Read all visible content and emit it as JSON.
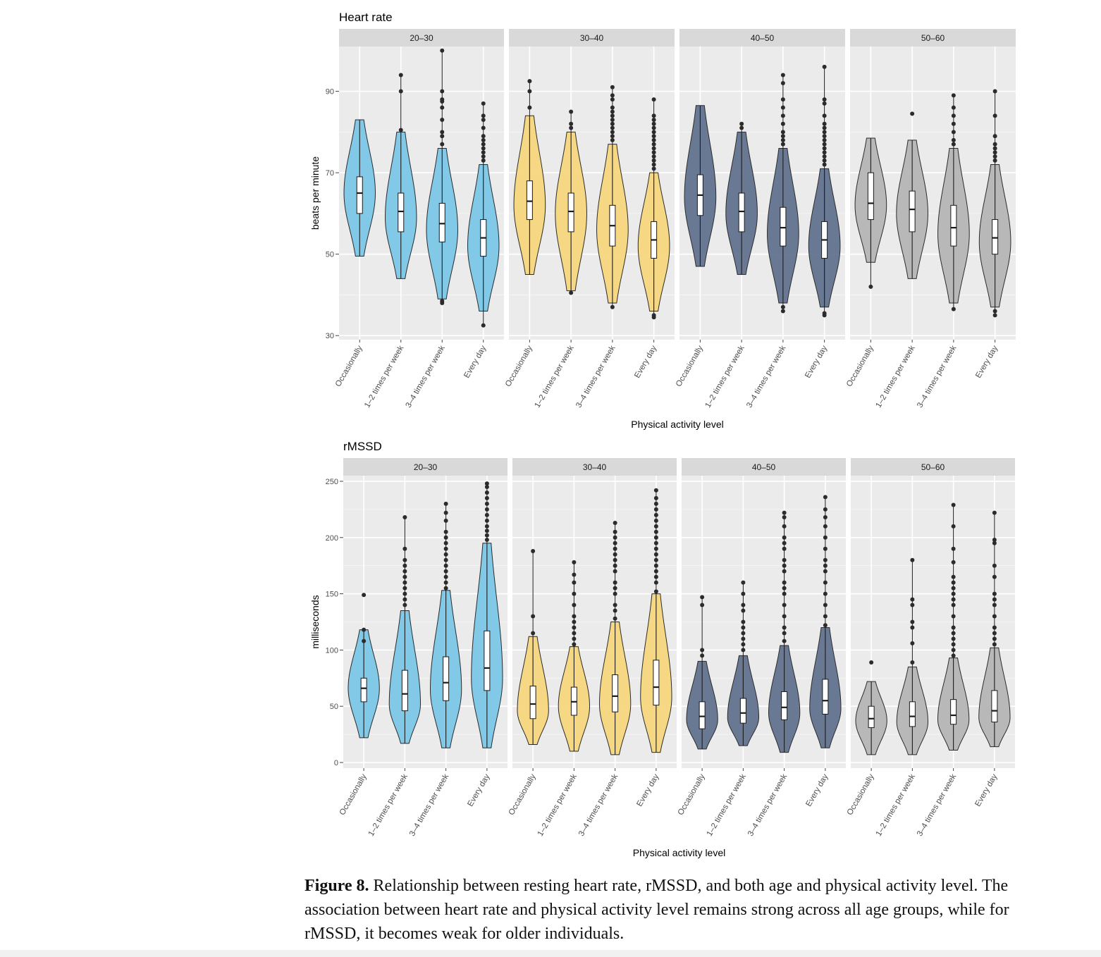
{
  "figure": {
    "caption_label": "Figure 8.",
    "caption_text": "Relationship between resting heart rate, rMSSD, and both age and physical activity level. The association between heart rate and physical activity level remains strong across all age groups, while for rMSSD, it becomes weak for older individuals."
  },
  "chart_data": [
    {
      "type": "violin",
      "title": "Heart rate",
      "ylabel": "beats per minute",
      "xlabel": "Physical activity level",
      "ylim": [
        29,
        101
      ],
      "yticks": [
        30,
        50,
        70,
        90
      ],
      "grid": true,
      "facets": [
        "20–30",
        "30–40",
        "40–50",
        "50–60"
      ],
      "categories": [
        "Occasionally",
        "1–2 times per week",
        "3–4 times per week",
        "Every day"
      ],
      "facet_colors": [
        "#78c4e6",
        "#f6d57a",
        "#5d6f8c",
        "#b3b3b3"
      ],
      "groups": [
        [
          {
            "min": 49.5,
            "q1": 60,
            "median": 65,
            "q3": 69,
            "max": 83,
            "mode": 65,
            "outliers": []
          },
          {
            "min": 44,
            "q1": 55.5,
            "median": 60.5,
            "q3": 65,
            "max": 80,
            "mode": 59,
            "outliers": [
              80.5,
              90,
              94
            ]
          },
          {
            "min": 39,
            "q1": 53,
            "median": 57.5,
            "q3": 62.5,
            "max": 76,
            "mode": 56,
            "outliers": [
              38,
              38.5,
              77,
              79,
              80,
              83,
              86,
              87.5,
              88,
              90,
              100
            ]
          },
          {
            "min": 36,
            "q1": 49.5,
            "median": 54,
            "q3": 58.5,
            "max": 72,
            "mode": 52,
            "outliers": [
              32.5,
              73,
              74,
              75,
              76,
              77,
              78,
              79,
              81,
              83,
              84,
              87
            ]
          }
        ],
        [
          {
            "min": 45,
            "q1": 58.5,
            "median": 63,
            "q3": 68,
            "max": 84,
            "mode": 62,
            "outliers": [
              86,
              90,
              92.5
            ]
          },
          {
            "min": 41,
            "q1": 55.5,
            "median": 60.5,
            "q3": 65,
            "max": 80,
            "mode": 60,
            "outliers": [
              40.5,
              81,
              82,
              85
            ]
          },
          {
            "min": 38,
            "q1": 52,
            "median": 57,
            "q3": 62,
            "max": 77,
            "mode": 56,
            "outliers": [
              37,
              78,
              79,
              80,
              81,
              82,
              83,
              84,
              85,
              86,
              88,
              89,
              91
            ]
          },
          {
            "min": 36,
            "q1": 49,
            "median": 53.5,
            "q3": 58,
            "max": 70,
            "mode": 52,
            "outliers": [
              34.5,
              35,
              71,
              72,
              73,
              74,
              75,
              76,
              77,
              78,
              79,
              80,
              81,
              82,
              83,
              84,
              88
            ]
          }
        ],
        [
          {
            "min": 47,
            "q1": 59.5,
            "median": 64.5,
            "q3": 69.5,
            "max": 86.5,
            "mode": 64,
            "outliers": []
          },
          {
            "min": 45,
            "q1": 55.5,
            "median": 60.5,
            "q3": 65,
            "max": 80,
            "mode": 60,
            "outliers": [
              81,
              82
            ]
          },
          {
            "min": 38,
            "q1": 52,
            "median": 56.5,
            "q3": 61.5,
            "max": 76,
            "mode": 55,
            "outliers": [
              36,
              37,
              77,
              78,
              79,
              80,
              82,
              84,
              86,
              88,
              92,
              94
            ]
          },
          {
            "min": 37,
            "q1": 49,
            "median": 53.5,
            "q3": 58,
            "max": 71,
            "mode": 52,
            "outliers": [
              35,
              35.5,
              72,
              73,
              74,
              75,
              76,
              77,
              78,
              79,
              80,
              81,
              82,
              84,
              87,
              88,
              96
            ]
          }
        ],
        [
          {
            "min": 48,
            "q1": 58.5,
            "median": 62.5,
            "q3": 70,
            "max": 78.5,
            "mode": 62,
            "outliers": [
              42
            ]
          },
          {
            "min": 44,
            "q1": 55.5,
            "median": 61,
            "q3": 65.5,
            "max": 78,
            "mode": 60,
            "outliers": [
              84.5
            ]
          },
          {
            "min": 38,
            "q1": 52,
            "median": 56.5,
            "q3": 62,
            "max": 76,
            "mode": 55,
            "outliers": [
              36.5,
              77,
              78,
              80,
              82,
              84,
              86,
              89
            ]
          },
          {
            "min": 37,
            "q1": 50,
            "median": 54,
            "q3": 58.5,
            "max": 72,
            "mode": 53,
            "outliers": [
              35,
              36,
              73,
              74,
              75,
              76,
              77,
              79,
              84,
              90
            ]
          }
        ]
      ]
    },
    {
      "type": "violin",
      "title": "rMSSD",
      "ylabel": "milliseconds",
      "xlabel": "Physical activity level",
      "ylim": [
        -5,
        255
      ],
      "yticks": [
        0,
        50,
        100,
        150,
        200,
        250
      ],
      "grid": true,
      "facets": [
        "20–30",
        "30–40",
        "40–50",
        "50–60"
      ],
      "categories": [
        "Occasionally",
        "1–2 times per week",
        "3–4 times per week",
        "Every day"
      ],
      "facet_colors": [
        "#78c4e6",
        "#f6d57a",
        "#5d6f8c",
        "#b3b3b3"
      ],
      "groups": [
        [
          {
            "min": 22,
            "q1": 54,
            "median": 66,
            "q3": 75,
            "max": 118,
            "mode": 66,
            "outliers": [
              108,
              118,
              149
            ]
          },
          {
            "min": 17,
            "q1": 46,
            "median": 61,
            "q3": 82,
            "max": 135,
            "mode": 52,
            "outliers": [
              140,
              145,
              150,
              155,
              160,
              165,
              170,
              175,
              180,
              190,
              218
            ]
          },
          {
            "min": 13,
            "q1": 55,
            "median": 71,
            "q3": 94,
            "max": 153,
            "mode": 65,
            "outliers": [
              155,
              160,
              165,
              170,
              175,
              180,
              185,
              190,
              195,
              200,
              205,
              215,
              222,
              230
            ]
          },
          {
            "min": 13,
            "q1": 64,
            "median": 84,
            "q3": 117,
            "max": 195,
            "mode": 75,
            "outliers": [
              198,
              202,
              206,
              210,
              215,
              220,
              225,
              230,
              235,
              240,
              245,
              248
            ]
          }
        ],
        [
          {
            "min": 16,
            "q1": 39,
            "median": 52,
            "q3": 68,
            "max": 112,
            "mode": 46,
            "outliers": [
              115,
              130,
              188
            ]
          },
          {
            "min": 10,
            "q1": 42,
            "median": 54,
            "q3": 67,
            "max": 103,
            "mode": 50,
            "outliers": [
              105,
              110,
              115,
              120,
              125,
              130,
              140,
              150,
              160,
              167,
              178
            ]
          },
          {
            "min": 7,
            "q1": 45,
            "median": 59,
            "q3": 78,
            "max": 125,
            "mode": 52,
            "outliers": [
              128,
              135,
              140,
              150,
              155,
              160,
              170,
              175,
              180,
              185,
              190,
              195,
              200,
              205,
              213
            ]
          },
          {
            "min": 9,
            "q1": 51,
            "median": 67,
            "q3": 91,
            "max": 150,
            "mode": 58,
            "outliers": [
              152,
              160,
              165,
              170,
              175,
              180,
              185,
              190,
              195,
              200,
              205,
              210,
              215,
              220,
              225,
              230,
              235,
              242
            ]
          }
        ],
        [
          {
            "min": 12,
            "q1": 30,
            "median": 41,
            "q3": 54,
            "max": 90,
            "mode": 38,
            "outliers": [
              95,
              100,
              140,
              147
            ]
          },
          {
            "min": 15,
            "q1": 35,
            "median": 44,
            "q3": 57,
            "max": 95,
            "mode": 40,
            "outliers": [
              100,
              105,
              110,
              115,
              120,
              125,
              135,
              140,
              150,
              160
            ]
          },
          {
            "min": 9,
            "q1": 38,
            "median": 49,
            "q3": 63,
            "max": 104,
            "mode": 44,
            "outliers": [
              108,
              115,
              120,
              130,
              140,
              150,
              155,
              160,
              170,
              175,
              180,
              190,
              195,
              200,
              210,
              218,
              222
            ]
          },
          {
            "min": 13,
            "q1": 43,
            "median": 55,
            "q3": 74,
            "max": 120,
            "mode": 48,
            "outliers": [
              122,
              130,
              140,
              150,
              160,
              170,
              175,
              180,
              190,
              200,
              210,
              218,
              225,
              236
            ]
          }
        ],
        [
          {
            "min": 7,
            "q1": 31,
            "median": 39,
            "q3": 50,
            "max": 72,
            "mode": 37,
            "outliers": [
              89
            ]
          },
          {
            "min": 7,
            "q1": 32,
            "median": 41,
            "q3": 54,
            "max": 85,
            "mode": 36,
            "outliers": [
              89,
              106,
              120,
              125,
              140,
              145,
              180
            ]
          },
          {
            "min": 11,
            "q1": 34,
            "median": 42,
            "q3": 56,
            "max": 93,
            "mode": 38,
            "outliers": [
              95,
              100,
              105,
              110,
              115,
              120,
              130,
              140,
              145,
              150,
              155,
              160,
              165,
              178,
              190,
              210,
              229
            ]
          },
          {
            "min": 14,
            "q1": 36,
            "median": 46,
            "q3": 64,
            "max": 102,
            "mode": 40,
            "outliers": [
              105,
              110,
              115,
              120,
              130,
              140,
              145,
              150,
              165,
              175,
              195,
              198,
              222
            ]
          }
        ]
      ]
    }
  ]
}
